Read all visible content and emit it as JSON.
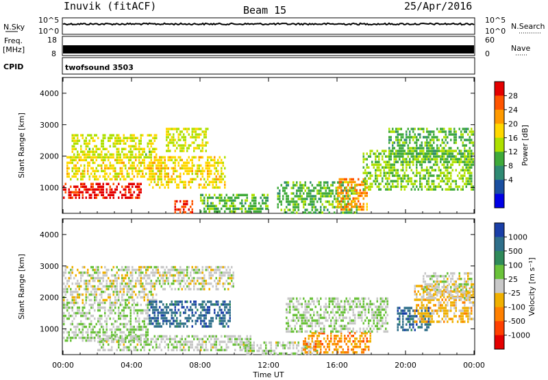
{
  "header": {
    "site": "Inuvik (fitACF)",
    "beam": "Beam 15",
    "date": "25/Apr/2016"
  },
  "strips": {
    "noise_left_label": "N.Sky",
    "noise_right_label": "N.Search",
    "noise_left_ticks": [
      "10^5",
      "10^0"
    ],
    "noise_right_ticks": [
      "10^5",
      "10^0"
    ],
    "freq_left_label_1": "Freq.",
    "freq_left_label_2": "[MHz]",
    "freq_left_ticks": [
      "18",
      "8"
    ],
    "freq_right_label": "Nave",
    "freq_right_ticks": [
      "60",
      "0"
    ],
    "cpid_label": "CPID",
    "cpid_value": "twofsound 3503"
  },
  "power_panel": {
    "ylabel": "Slant Range [km]",
    "cbar_label": "Power [dB]",
    "cbar_ticks": [
      "28",
      "24",
      "20",
      "16",
      "12",
      "8",
      "4"
    ],
    "cbar_colors": [
      "#e40000",
      "#ff5500",
      "#ff9a00",
      "#ffd800",
      "#aee000",
      "#3faa3a",
      "#2f8a73",
      "#1a4fa0",
      "#0000e6"
    ],
    "range_ticks": [
      "4000",
      "3000",
      "2000",
      "1000"
    ]
  },
  "velocity_panel": {
    "ylabel": "Slant Range [km]",
    "cbar_label": "Velocity [m s⁻¹]",
    "cbar_ticks": [
      "1000",
      "500",
      "100",
      "25",
      "-25",
      "-100",
      "-500",
      "-1000"
    ],
    "cbar_colors": [
      "#1a3fa8",
      "#2f6f8a",
      "#2f8a5a",
      "#6ac23a",
      "#c8c8c8",
      "#f0b000",
      "#ff8000",
      "#ff4000",
      "#e40000"
    ],
    "range_ticks": [
      "4000",
      "3000",
      "2000",
      "1000"
    ]
  },
  "xaxis": {
    "label": "Time UT",
    "ticks": [
      "00:00",
      "04:00",
      "08:00",
      "12:00",
      "16:00",
      "20:00",
      "00:00"
    ]
  },
  "chart_data": [
    {
      "type": "heatmap",
      "title": "Power [dB]",
      "xlabel": "Time UT",
      "ylabel": "Slant Range [km]",
      "x_range_hours": [
        0,
        24
      ],
      "y_range_km": [
        180,
        4500
      ],
      "colorbar_range": [
        0,
        30
      ],
      "regions": [
        {
          "t0": 0.0,
          "t1": 4.6,
          "r0": 650,
          "r1": 1150,
          "value": 28
        },
        {
          "t0": 0.2,
          "t1": 5.8,
          "r0": 1250,
          "r1": 2000,
          "value": 18
        },
        {
          "t0": 0.5,
          "t1": 5.5,
          "r0": 2000,
          "r1": 2700,
          "value": 16
        },
        {
          "t0": 5.0,
          "t1": 9.5,
          "r0": 1000,
          "r1": 2000,
          "value": 18
        },
        {
          "t0": 6.0,
          "t1": 8.5,
          "r0": 2200,
          "r1": 2900,
          "value": 16
        },
        {
          "t0": 6.5,
          "t1": 7.6,
          "r0": 200,
          "r1": 600,
          "value": 26
        },
        {
          "t0": 8.0,
          "t1": 12.0,
          "r0": 200,
          "r1": 800,
          "value": 12
        },
        {
          "t0": 12.5,
          "t1": 17.2,
          "r0": 200,
          "r1": 1200,
          "value": 12
        },
        {
          "t0": 16.0,
          "t1": 17.8,
          "r0": 300,
          "r1": 1300,
          "value": 22
        },
        {
          "t0": 17.5,
          "t1": 24.0,
          "r0": 900,
          "r1": 2200,
          "value": 14
        },
        {
          "t0": 19.0,
          "t1": 24.0,
          "r0": 1800,
          "r1": 2900,
          "value": 12
        }
      ]
    },
    {
      "type": "heatmap",
      "title": "Velocity [m s⁻¹]",
      "xlabel": "Time UT",
      "ylabel": "Slant Range [km]",
      "x_range_hours": [
        0,
        24
      ],
      "y_range_km": [
        180,
        4500
      ],
      "colorbar_range": [
        -1000,
        1000
      ],
      "regions": [
        {
          "t0": 0.0,
          "t1": 5.5,
          "r0": 1800,
          "r1": 3000,
          "value": 0
        },
        {
          "t0": 0.0,
          "t1": 5.0,
          "r0": 600,
          "r1": 1800,
          "value": 100
        },
        {
          "t0": 5.0,
          "t1": 9.8,
          "r0": 1100,
          "r1": 1900,
          "value": 700
        },
        {
          "t0": 5.5,
          "t1": 10.0,
          "r0": 2300,
          "r1": 3000,
          "value": 0
        },
        {
          "t0": 2.0,
          "t1": 11.0,
          "r0": 300,
          "r1": 800,
          "value": 60
        },
        {
          "t0": 10.5,
          "t1": 15.0,
          "r0": 200,
          "r1": 600,
          "value": 60
        },
        {
          "t0": 14.0,
          "t1": 18.0,
          "r0": 250,
          "r1": 900,
          "value": -400
        },
        {
          "t0": 13.0,
          "t1": 19.0,
          "r0": 900,
          "r1": 2000,
          "value": 100
        },
        {
          "t0": 19.5,
          "t1": 21.5,
          "r0": 1000,
          "r1": 1700,
          "value": 700
        },
        {
          "t0": 20.5,
          "t1": 24.0,
          "r0": 1200,
          "r1": 2400,
          "value": -200
        },
        {
          "t0": 21.0,
          "t1": 24.0,
          "r0": 2000,
          "r1": 2800,
          "value": 0
        }
      ]
    }
  ]
}
